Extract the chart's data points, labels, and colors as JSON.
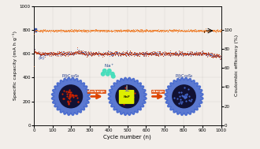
{
  "xlabel": "Cycle number (n)",
  "ylabel_left": "Specific capacity (mA h g⁻¹)",
  "ylabel_right": "Coulombic efficiency (%)",
  "xlim": [
    0,
    1000
  ],
  "ylim_left": [
    0,
    1000
  ],
  "ylim_right": [
    0,
    125
  ],
  "xticks": [
    0,
    100,
    200,
    300,
    400,
    500,
    600,
    700,
    800,
    900,
    1000
  ],
  "yticks_left": [
    0,
    200,
    400,
    600,
    800,
    1000
  ],
  "yticks_right": [
    0,
    20,
    40,
    60,
    80,
    100
  ],
  "bg_color": "#f2eeea",
  "capacity_discharge_color": "#3a55aa",
  "capacity_charge_color": "#cc3300",
  "coulombic_color": "#f07820",
  "annotation": "(e)",
  "label_left": "P@Co₉S₈",
  "label_right": "P@Co₉S₈",
  "label_na": "Na⁺",
  "discharge_label": "discharge",
  "charge_label": "charge",
  "sphere_outer_color": "#3a5fcc",
  "sphere_inner_color": "#111133",
  "red_dot_color": "#cc2200",
  "blue_dot_color": "#4466cc",
  "na_dot_color": "#44ddbb",
  "yellow_color": "#ddee00",
  "arrow_color": "#dd4400"
}
